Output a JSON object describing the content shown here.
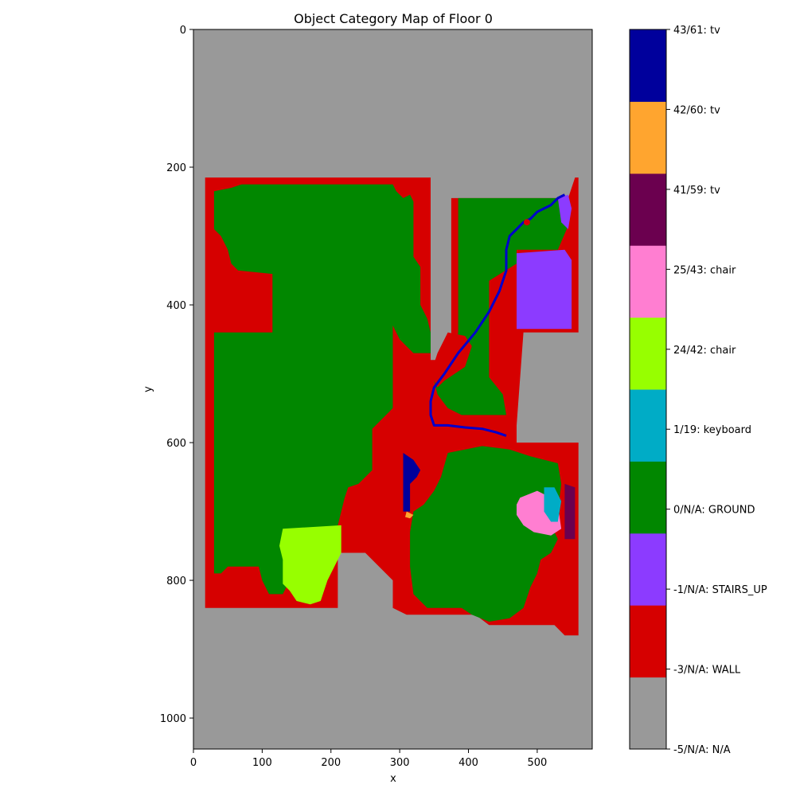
{
  "chart_data": {
    "type": "heatmap",
    "title": "Object Category Map of Floor 0",
    "xlabel": "x",
    "ylabel": "y",
    "xlim": [
      0,
      580
    ],
    "ylim": [
      1045,
      0
    ],
    "x_ticks": [
      0,
      100,
      200,
      300,
      400,
      500
    ],
    "y_ticks": [
      0,
      200,
      400,
      600,
      800,
      1000
    ],
    "background_category": "-5/N/A: N/A",
    "categories": [
      {
        "label": "-5/N/A: N/A",
        "color": "#999999"
      },
      {
        "label": "-3/N/A: WALL",
        "color": "#d60000"
      },
      {
        "label": "-1/N/A: STAIRS_UP",
        "color": "#8c3bff"
      },
      {
        "label": "0/N/A: GROUND",
        "color": "#018700"
      },
      {
        "label": "1/19: keyboard",
        "color": "#00acc6"
      },
      {
        "label": "24/42: chair",
        "color": "#97ff00"
      },
      {
        "label": "25/43: chair",
        "color": "#ff7ed1"
      },
      {
        "label": "41/59: tv",
        "color": "#6b004f"
      },
      {
        "label": "42/60: tv",
        "color": "#ffa52f"
      },
      {
        "label": "43/61: tv",
        "color": "#00009c"
      }
    ],
    "regions": [
      {
        "category": "-3/N/A: WALL",
        "points": [
          [
            17,
            215
          ],
          [
            345,
            215
          ],
          [
            345,
            480
          ],
          [
            375,
            480
          ],
          [
            375,
            245
          ],
          [
            545,
            245
          ],
          [
            555,
            215
          ],
          [
            560,
            215
          ],
          [
            560,
            440
          ],
          [
            480,
            440
          ],
          [
            470,
            575
          ],
          [
            470,
            600
          ],
          [
            560,
            600
          ],
          [
            560,
            880
          ],
          [
            540,
            880
          ],
          [
            525,
            865
          ],
          [
            430,
            865
          ],
          [
            410,
            850
          ],
          [
            310,
            850
          ],
          [
            290,
            840
          ],
          [
            290,
            800
          ],
          [
            250,
            760
          ],
          [
            210,
            760
          ],
          [
            210,
            840
          ],
          [
            17,
            840
          ]
        ]
      },
      {
        "category": "0/N/A: GROUND",
        "points": [
          [
            30,
            235
          ],
          [
            55,
            230
          ],
          [
            70,
            225
          ],
          [
            290,
            225
          ],
          [
            295,
            235
          ],
          [
            305,
            245
          ],
          [
            315,
            240
          ],
          [
            320,
            250
          ],
          [
            320,
            330
          ],
          [
            330,
            345
          ],
          [
            330,
            400
          ],
          [
            340,
            420
          ],
          [
            345,
            440
          ],
          [
            345,
            470
          ],
          [
            320,
            470
          ],
          [
            300,
            450
          ],
          [
            290,
            430
          ],
          [
            290,
            550
          ],
          [
            270,
            570
          ],
          [
            260,
            580
          ],
          [
            260,
            640
          ],
          [
            240,
            660
          ],
          [
            225,
            665
          ],
          [
            220,
            680
          ],
          [
            210,
            720
          ],
          [
            200,
            745
          ],
          [
            170,
            760
          ],
          [
            150,
            780
          ],
          [
            140,
            800
          ],
          [
            130,
            820
          ],
          [
            110,
            820
          ],
          [
            100,
            800
          ],
          [
            95,
            780
          ],
          [
            50,
            780
          ],
          [
            40,
            790
          ],
          [
            30,
            790
          ],
          [
            30,
            440
          ],
          [
            80,
            440
          ],
          [
            115,
            440
          ],
          [
            115,
            355
          ],
          [
            65,
            350
          ],
          [
            55,
            340
          ],
          [
            50,
            320
          ],
          [
            40,
            300
          ],
          [
            30,
            290
          ]
        ]
      },
      {
        "category": "0/N/A: GROUND",
        "points": [
          [
            385,
            245
          ],
          [
            540,
            245
          ],
          [
            545,
            260
          ],
          [
            545,
            285
          ],
          [
            530,
            320
          ],
          [
            470,
            320
          ],
          [
            470,
            340
          ],
          [
            430,
            365
          ],
          [
            430,
            420
          ],
          [
            430,
            505
          ],
          [
            450,
            530
          ],
          [
            455,
            560
          ],
          [
            390,
            560
          ],
          [
            370,
            550
          ],
          [
            355,
            530
          ],
          [
            350,
            510
          ],
          [
            360,
            490
          ],
          [
            380,
            470
          ],
          [
            385,
            440
          ]
        ]
      },
      {
        "category": "0/N/A: GROUND",
        "points": [
          [
            370,
            615
          ],
          [
            420,
            605
          ],
          [
            460,
            610
          ],
          [
            490,
            620
          ],
          [
            530,
            630
          ],
          [
            535,
            660
          ],
          [
            530,
            700
          ],
          [
            520,
            720
          ],
          [
            530,
            740
          ],
          [
            520,
            760
          ],
          [
            505,
            770
          ],
          [
            500,
            790
          ],
          [
            490,
            810
          ],
          [
            480,
            840
          ],
          [
            460,
            855
          ],
          [
            430,
            860
          ],
          [
            405,
            850
          ],
          [
            390,
            840
          ],
          [
            370,
            840
          ],
          [
            340,
            840
          ],
          [
            320,
            820
          ],
          [
            315,
            780
          ],
          [
            315,
            730
          ],
          [
            320,
            700
          ],
          [
            335,
            690
          ],
          [
            350,
            670
          ],
          [
            360,
            650
          ]
        ]
      },
      {
        "category": "-1/N/A: STAIRS_UP",
        "points": [
          [
            470,
            325
          ],
          [
            540,
            320
          ],
          [
            550,
            335
          ],
          [
            550,
            435
          ],
          [
            470,
            435
          ]
        ]
      },
      {
        "category": "-1/N/A: STAIRS_UP",
        "points": [
          [
            530,
            245
          ],
          [
            545,
            240
          ],
          [
            550,
            260
          ],
          [
            545,
            290
          ],
          [
            535,
            280
          ]
        ]
      },
      {
        "category": "24/42: chair",
        "points": [
          [
            130,
            725
          ],
          [
            215,
            720
          ],
          [
            215,
            760
          ],
          [
            205,
            780
          ],
          [
            195,
            800
          ],
          [
            185,
            830
          ],
          [
            170,
            835
          ],
          [
            150,
            830
          ],
          [
            140,
            815
          ],
          [
            130,
            805
          ],
          [
            130,
            770
          ],
          [
            125,
            750
          ]
        ]
      },
      {
        "category": "25/43: chair",
        "points": [
          [
            475,
            680
          ],
          [
            500,
            670
          ],
          [
            520,
            680
          ],
          [
            530,
            690
          ],
          [
            535,
            725
          ],
          [
            520,
            735
          ],
          [
            495,
            730
          ],
          [
            480,
            720
          ],
          [
            470,
            705
          ],
          [
            470,
            690
          ]
        ]
      },
      {
        "category": "1/19: keyboard",
        "points": [
          [
            510,
            665
          ],
          [
            525,
            665
          ],
          [
            535,
            685
          ],
          [
            530,
            715
          ],
          [
            520,
            715
          ],
          [
            510,
            700
          ]
        ]
      },
      {
        "category": "41/59: tv",
        "points": [
          [
            540,
            660
          ],
          [
            555,
            665
          ],
          [
            555,
            740
          ],
          [
            540,
            740
          ]
        ]
      },
      {
        "category": "43/61: tv",
        "points": [
          [
            305,
            615
          ],
          [
            320,
            625
          ],
          [
            330,
            640
          ],
          [
            325,
            650
          ],
          [
            315,
            660
          ],
          [
            315,
            700
          ],
          [
            305,
            700
          ]
        ]
      },
      {
        "category": "42/60: tv",
        "points": [
          [
            310,
            700
          ],
          [
            320,
            705
          ],
          [
            315,
            710
          ],
          [
            308,
            708
          ]
        ]
      },
      {
        "category": "-3/N/A: WALL",
        "points": [
          [
            370,
            440
          ],
          [
            395,
            445
          ],
          [
            405,
            460
          ],
          [
            395,
            490
          ],
          [
            365,
            510
          ],
          [
            355,
            520
          ],
          [
            345,
            500
          ],
          [
            355,
            470
          ]
        ]
      }
    ],
    "path": {
      "color": "#0000cc",
      "points": [
        [
          540,
          240
        ],
        [
          530,
          245
        ],
        [
          520,
          255
        ],
        [
          510,
          260
        ],
        [
          500,
          265
        ],
        [
          490,
          275
        ],
        [
          480,
          280
        ],
        [
          470,
          290
        ],
        [
          460,
          300
        ],
        [
          455,
          320
        ],
        [
          455,
          350
        ],
        [
          445,
          380
        ],
        [
          430,
          410
        ],
        [
          410,
          440
        ],
        [
          385,
          470
        ],
        [
          365,
          500
        ],
        [
          350,
          520
        ],
        [
          345,
          540
        ],
        [
          345,
          560
        ],
        [
          350,
          575
        ],
        [
          370,
          575
        ],
        [
          395,
          578
        ],
        [
          420,
          580
        ],
        [
          440,
          585
        ],
        [
          455,
          590
        ]
      ]
    },
    "markers": [
      {
        "category": "-3/N/A: WALL",
        "x": 485,
        "y": 280
      }
    ],
    "colorbar_labels": [
      "43/61: tv",
      "42/60: tv",
      "41/59: tv",
      "25/43: chair",
      "24/42: chair",
      "1/19: keyboard",
      "0/N/A: GROUND",
      "-1/N/A: STAIRS_UP",
      "-3/N/A: WALL",
      "-5/N/A: N/A"
    ]
  }
}
